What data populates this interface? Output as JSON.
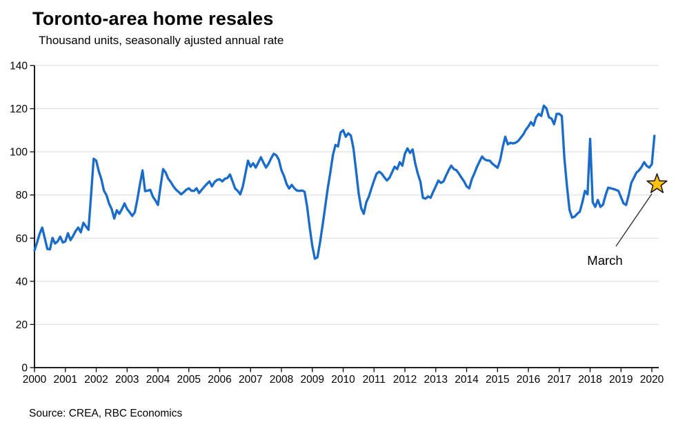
{
  "chart_data": {
    "type": "line",
    "title": "Toronto-area home resales",
    "subtitle": "Thousand units, seasonally ajusted annual rate",
    "source": "Source: CREA, RBC Economics",
    "grid": true,
    "legend": "none",
    "line_color": "#1B6CC8",
    "grid_color": "#D9D9D9",
    "axis_color": "#000000",
    "x_axis": {
      "ticks": [
        "2000",
        "2001",
        "2002",
        "2003",
        "2004",
        "2005",
        "2006",
        "2007",
        "2008",
        "2009",
        "2010",
        "2011",
        "2012",
        "2013",
        "2014",
        "2015",
        "2016",
        "2017",
        "2018",
        "2019",
        "2020"
      ]
    },
    "y_axis": {
      "ticks": [
        0,
        20,
        40,
        60,
        80,
        100,
        120,
        140
      ],
      "min": 0,
      "max": 140
    },
    "series": [
      {
        "name": "Toronto-area home resales",
        "frequency": "monthly",
        "start": "2000-01",
        "end": "2020-02",
        "values_by_year": {
          "2000": [
            54.3,
            58,
            62,
            64.9,
            60,
            55,
            54.8,
            60.1,
            57.5,
            58.5,
            60.7,
            58
          ],
          "2001": [
            58.5,
            62.3,
            59.1,
            61,
            63.3,
            64.9,
            62.7,
            67.1,
            65.5,
            63.9,
            80,
            96.8
          ],
          "2002": [
            95.9,
            91,
            87.3,
            82,
            79.9,
            76,
            73.5,
            69.1,
            72.9,
            71.3,
            73.5,
            76.1
          ],
          "2003": [
            73.5,
            72,
            70.3,
            72,
            78,
            85,
            91.4,
            81.8,
            82,
            82.4,
            79.3,
            77.5
          ],
          "2004": [
            75.4,
            84,
            92,
            90.4,
            87.5,
            86,
            84,
            82.5,
            81.5,
            80.3,
            81.3,
            82.4
          ],
          "2005": [
            83.1,
            82,
            81.9,
            83.1,
            80.9,
            82.4,
            83.8,
            85.1,
            86.3,
            84,
            86,
            87
          ],
          "2006": [
            87.3,
            86.3,
            87.5,
            87.9,
            89.5,
            86.3,
            83,
            81.9,
            80.3,
            84,
            90,
            95.9
          ],
          "2007": [
            93.1,
            94.7,
            92.7,
            95,
            97.5,
            95,
            92.7,
            94.5,
            97,
            99.1,
            98.4,
            96.3
          ],
          "2008": [
            91.5,
            88.8,
            85.1,
            83,
            84.7,
            83.1,
            82.1,
            81.9,
            82.1,
            81.5,
            74.5,
            64.9
          ],
          "2009": [
            56.4,
            50.5,
            51.1,
            58,
            66,
            74.5,
            83.1,
            90.4,
            98.4,
            103.2,
            102.5,
            109
          ],
          "2010": [
            110,
            107,
            108.6,
            107.5,
            101.6,
            91.5,
            80.9,
            73.9,
            71.3,
            76.7,
            79.3,
            83.1
          ],
          "2011": [
            86.7,
            89.9,
            90.8,
            89.9,
            88.2,
            86.7,
            88,
            90.5,
            93.1,
            92,
            95.2,
            93.6
          ],
          "2012": [
            99.1,
            101.6,
            99.5,
            101.1,
            94.7,
            89.9,
            86.3,
            78.7,
            78.3,
            79.3,
            78.7,
            81.5
          ],
          "2013": [
            84,
            86.7,
            85.6,
            86.3,
            89,
            91.5,
            93.6,
            92,
            91.5,
            89.9,
            88,
            86.3
          ],
          "2014": [
            84,
            83.1,
            87.3,
            90,
            93,
            95.5,
            97.8,
            96.5,
            96,
            95.9,
            94.5,
            93.6
          ],
          "2015": [
            92.6,
            96,
            102,
            107,
            103.5,
            104.2,
            103.9,
            104.2,
            105,
            106.5,
            108,
            110.2
          ],
          "2016": [
            111.8,
            113.8,
            112.2,
            116,
            117.6,
            116.6,
            121.4,
            120.2,
            116,
            115.4,
            112.8,
            117.6
          ],
          "2017": [
            117.6,
            116.6,
            97,
            84.1,
            73,
            69.5,
            70,
            71.3,
            72.3,
            76.7,
            81.9,
            80.3
          ],
          "2018": [
            106,
            76.7,
            74.5,
            77.7,
            74.5,
            75.5,
            79.9,
            83.4,
            83.1,
            82.8,
            82.4,
            81.9
          ],
          "2019": [
            79,
            76.1,
            75.4,
            80,
            85.6,
            87.9,
            90.4,
            91.4,
            93,
            95.2,
            93.5,
            92.7
          ],
          "2020": [
            94.3,
            107.4
          ]
        }
      }
    ],
    "annotation": {
      "label": "March",
      "month": "2020-03",
      "value": 85,
      "marker": "star",
      "star_fill": "#FFC20E",
      "star_stroke": "#1A1A1A"
    }
  }
}
